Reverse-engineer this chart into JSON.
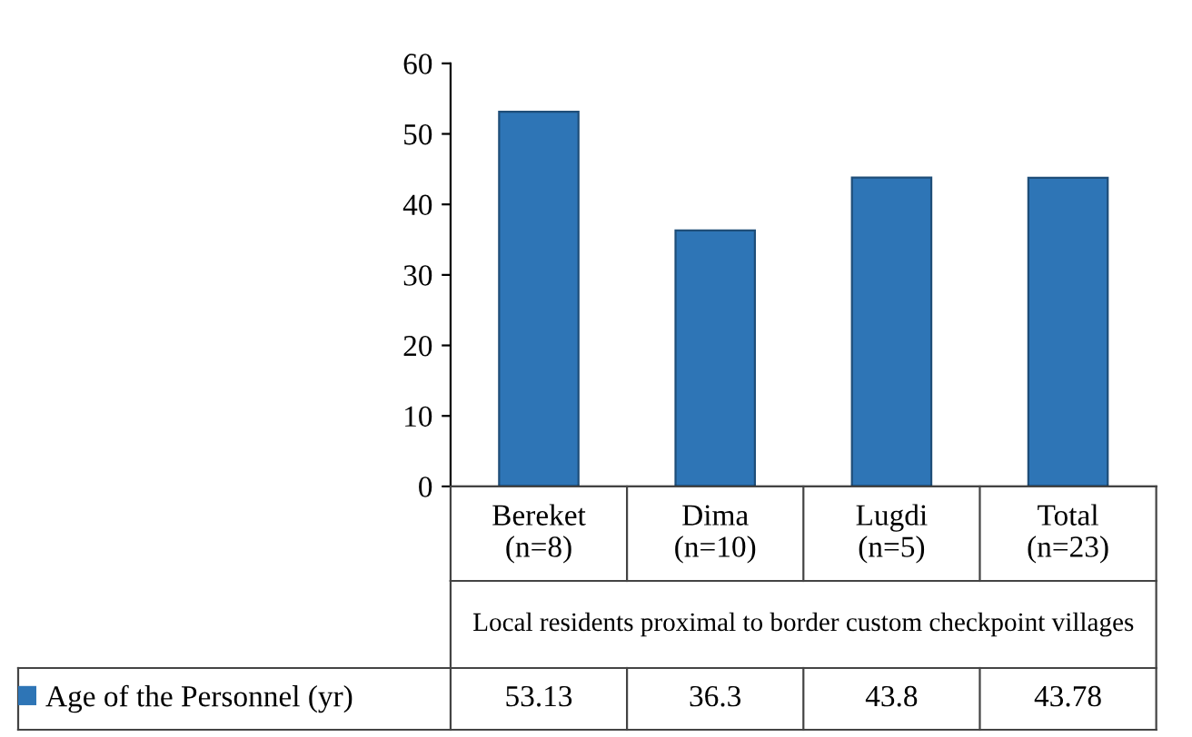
{
  "chart_data": {
    "type": "bar",
    "categories": [
      "Bereket\n(n=8)",
      "Dima\n(n=10)",
      "Lugdi\n(n=5)",
      "Total\n(n=23)"
    ],
    "xlabel": "Local residents proximal to border custom checkpoint villages",
    "series": [
      {
        "name": "Age of the Personnel (yr)",
        "color": "#2e75b6",
        "values": [
          53.13,
          36.3,
          43.8,
          43.78
        ]
      }
    ],
    "ylim": [
      0,
      60
    ],
    "yticks": [
      0,
      10,
      20,
      30,
      40,
      50,
      60
    ],
    "grid": false,
    "legend": "bottom left",
    "data_labels": true
  }
}
